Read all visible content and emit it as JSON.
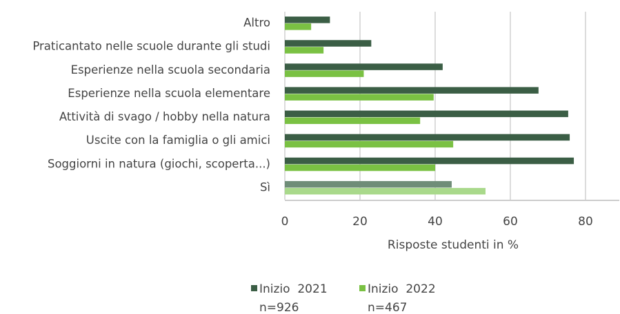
{
  "chart_data": {
    "type": "bar",
    "orientation": "horizontal",
    "categories": [
      "Altro",
      "Praticantato nelle scuole durante gli studi",
      "Esperienze nella scuola secondaria",
      "Esperienze nella scuola elementare",
      "Attività di svago / hobby nella natura",
      "Uscite con la famiglia o gli amici",
      "Soggiorni in natura (giochi, scoperta...)",
      "Sì"
    ],
    "series": [
      {
        "name": "Inizio  2021",
        "sample": "n=926",
        "color": "#3b5e45",
        "colors": [
          "#3b5e45",
          "#3b5e45",
          "#3b5e45",
          "#3b5e45",
          "#3b5e45",
          "#3b5e45",
          "#3b5e45",
          "#6f8d78"
        ],
        "values": [
          12,
          23,
          42,
          67.5,
          75.4,
          75.8,
          76.9,
          44.4
        ]
      },
      {
        "name": "Inizio  2022",
        "sample": "n=467",
        "color": "#7ac143",
        "colors": [
          "#7ac143",
          "#7ac143",
          "#7ac143",
          "#7ac143",
          "#7ac143",
          "#7ac143",
          "#7ac143",
          "#a9d98b"
        ],
        "values": [
          7,
          10.3,
          21,
          39.6,
          36,
          44.8,
          40,
          53.4
        ]
      }
    ],
    "xlabel": "Risposte studenti in %",
    "xlim": [
      0,
      89
    ],
    "xticks": [
      0,
      20,
      40,
      60,
      80
    ],
    "grid": true
  }
}
